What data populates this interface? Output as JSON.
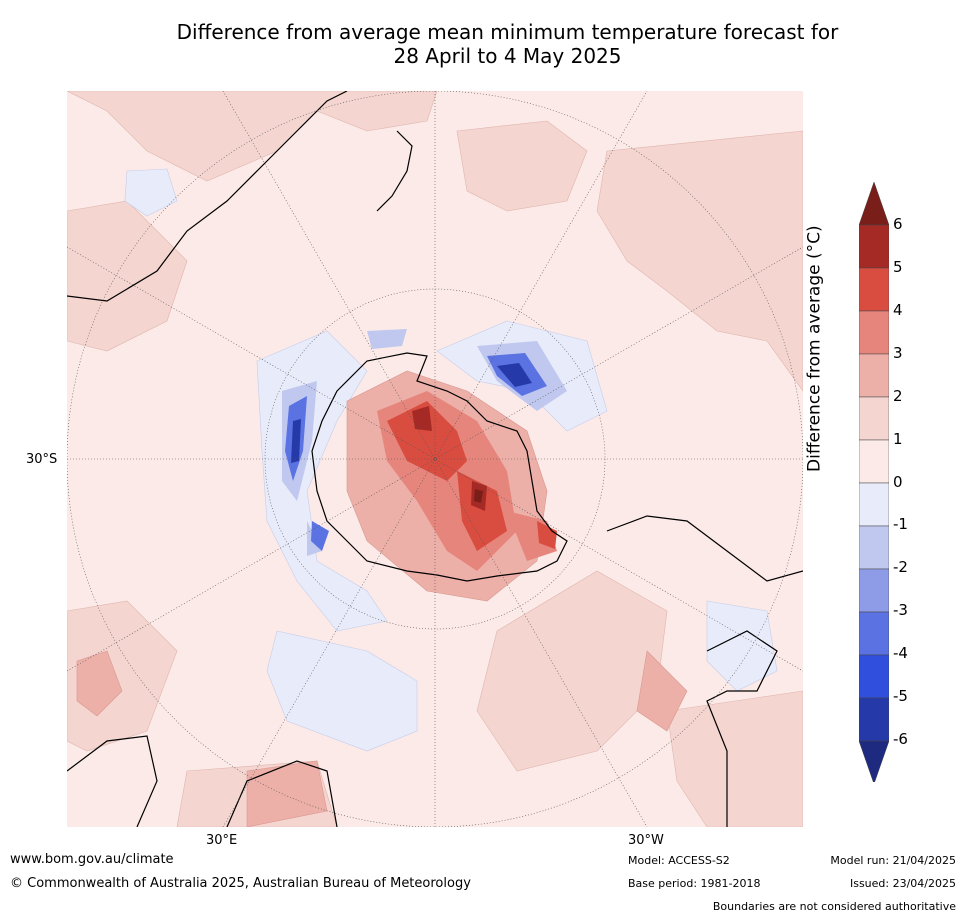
{
  "title_line1": "Difference from average mean minimum temperature forecast for",
  "title_line2": "28 April to 4 May 2025",
  "map": {
    "projection": "south-polar-stereographic",
    "lat_labels": [
      "30°S"
    ],
    "lon_labels": [
      "30°E",
      "30°W"
    ],
    "colors": {
      "ocean_base": "#fbeae7",
      "land_line": "#000000",
      "grid_line": "#555555"
    }
  },
  "colorbar": {
    "label": "Difference from average (°C)",
    "ticks": [
      "6",
      "5",
      "4",
      "3",
      "2",
      "1",
      "0",
      "-1",
      "-2",
      "-3",
      "-4",
      "-5",
      "-6"
    ],
    "bands": [
      {
        "range": "> 6",
        "color": "#7a1e1a"
      },
      {
        "range": "5 to 6",
        "color": "#a52a25"
      },
      {
        "range": "4 to 5",
        "color": "#d94c40"
      },
      {
        "range": "3 to 4",
        "color": "#e6857c"
      },
      {
        "range": "2 to 3",
        "color": "#ecb0a9"
      },
      {
        "range": "1 to 2",
        "color": "#f4d5d0"
      },
      {
        "range": "0 to 1",
        "color": "#fbeae7"
      },
      {
        "range": "-1 to 0",
        "color": "#e8ebf9"
      },
      {
        "range": "-2 to -1",
        "color": "#c0c8f0"
      },
      {
        "range": "-3 to -2",
        "color": "#8e9ce8"
      },
      {
        "range": "-4 to -3",
        "color": "#5b72e2"
      },
      {
        "range": "-5 to -4",
        "color": "#2f4fdc"
      },
      {
        "range": "-6 to -5",
        "color": "#2639a8"
      },
      {
        "range": "< -6",
        "color": "#1e2a80"
      }
    ]
  },
  "footer": {
    "website": "www.bom.gov.au/climate",
    "copyright": "© Commonwealth of Australia 2025, Australian Bureau of Meteorology",
    "model": "Model: ACCESS-S2",
    "base_period": "Base period: 1981-2018",
    "model_run": "Model run: 21/04/2025",
    "issued": "Issued: 23/04/2025",
    "disclaimer": "Boundaries are not considered authoritative"
  }
}
